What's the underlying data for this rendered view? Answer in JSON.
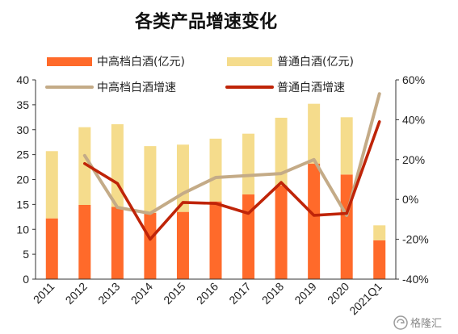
{
  "chart_data": {
    "type": "bar+line",
    "title": "各类产品增速变化",
    "categories": [
      "2011",
      "2012",
      "2013",
      "2014",
      "2015",
      "2016",
      "2017",
      "2018",
      "2019",
      "2020",
      "2021Q1"
    ],
    "bar_series": [
      {
        "name": "中高档白酒(亿元)",
        "color": "#ff6a2a",
        "values": [
          12.2,
          14.9,
          14.5,
          13.3,
          13.5,
          15.6,
          17.0,
          18.8,
          23.2,
          21.0,
          7.8
        ]
      },
      {
        "name": "普通白酒(亿元)",
        "color": "#f5dc8c",
        "values": [
          13.5,
          15.6,
          16.6,
          13.4,
          13.5,
          12.6,
          12.2,
          13.6,
          12.0,
          11.5,
          3.0
        ]
      }
    ],
    "line_series": [
      {
        "name": "中高档白酒增速",
        "color": "#c4ab87",
        "values": [
          null,
          22,
          -4,
          -7,
          3,
          11,
          12,
          13,
          20,
          -8,
          53
        ]
      },
      {
        "name": "普通白酒增速",
        "color": "#bf2408",
        "values": [
          null,
          18,
          8,
          -20,
          -1.5,
          -2,
          -7,
          8.5,
          -8,
          -7,
          39
        ]
      }
    ],
    "y_left": {
      "min": 0,
      "max": 40,
      "ticks": [
        0,
        5,
        10,
        15,
        20,
        25,
        30,
        35,
        40
      ]
    },
    "y_right": {
      "min": -40,
      "max": 60,
      "ticks": [
        "-40%",
        "-20%",
        "0%",
        "20%",
        "40%",
        "60%"
      ]
    },
    "legend_position": "top"
  },
  "watermark": "格隆汇"
}
